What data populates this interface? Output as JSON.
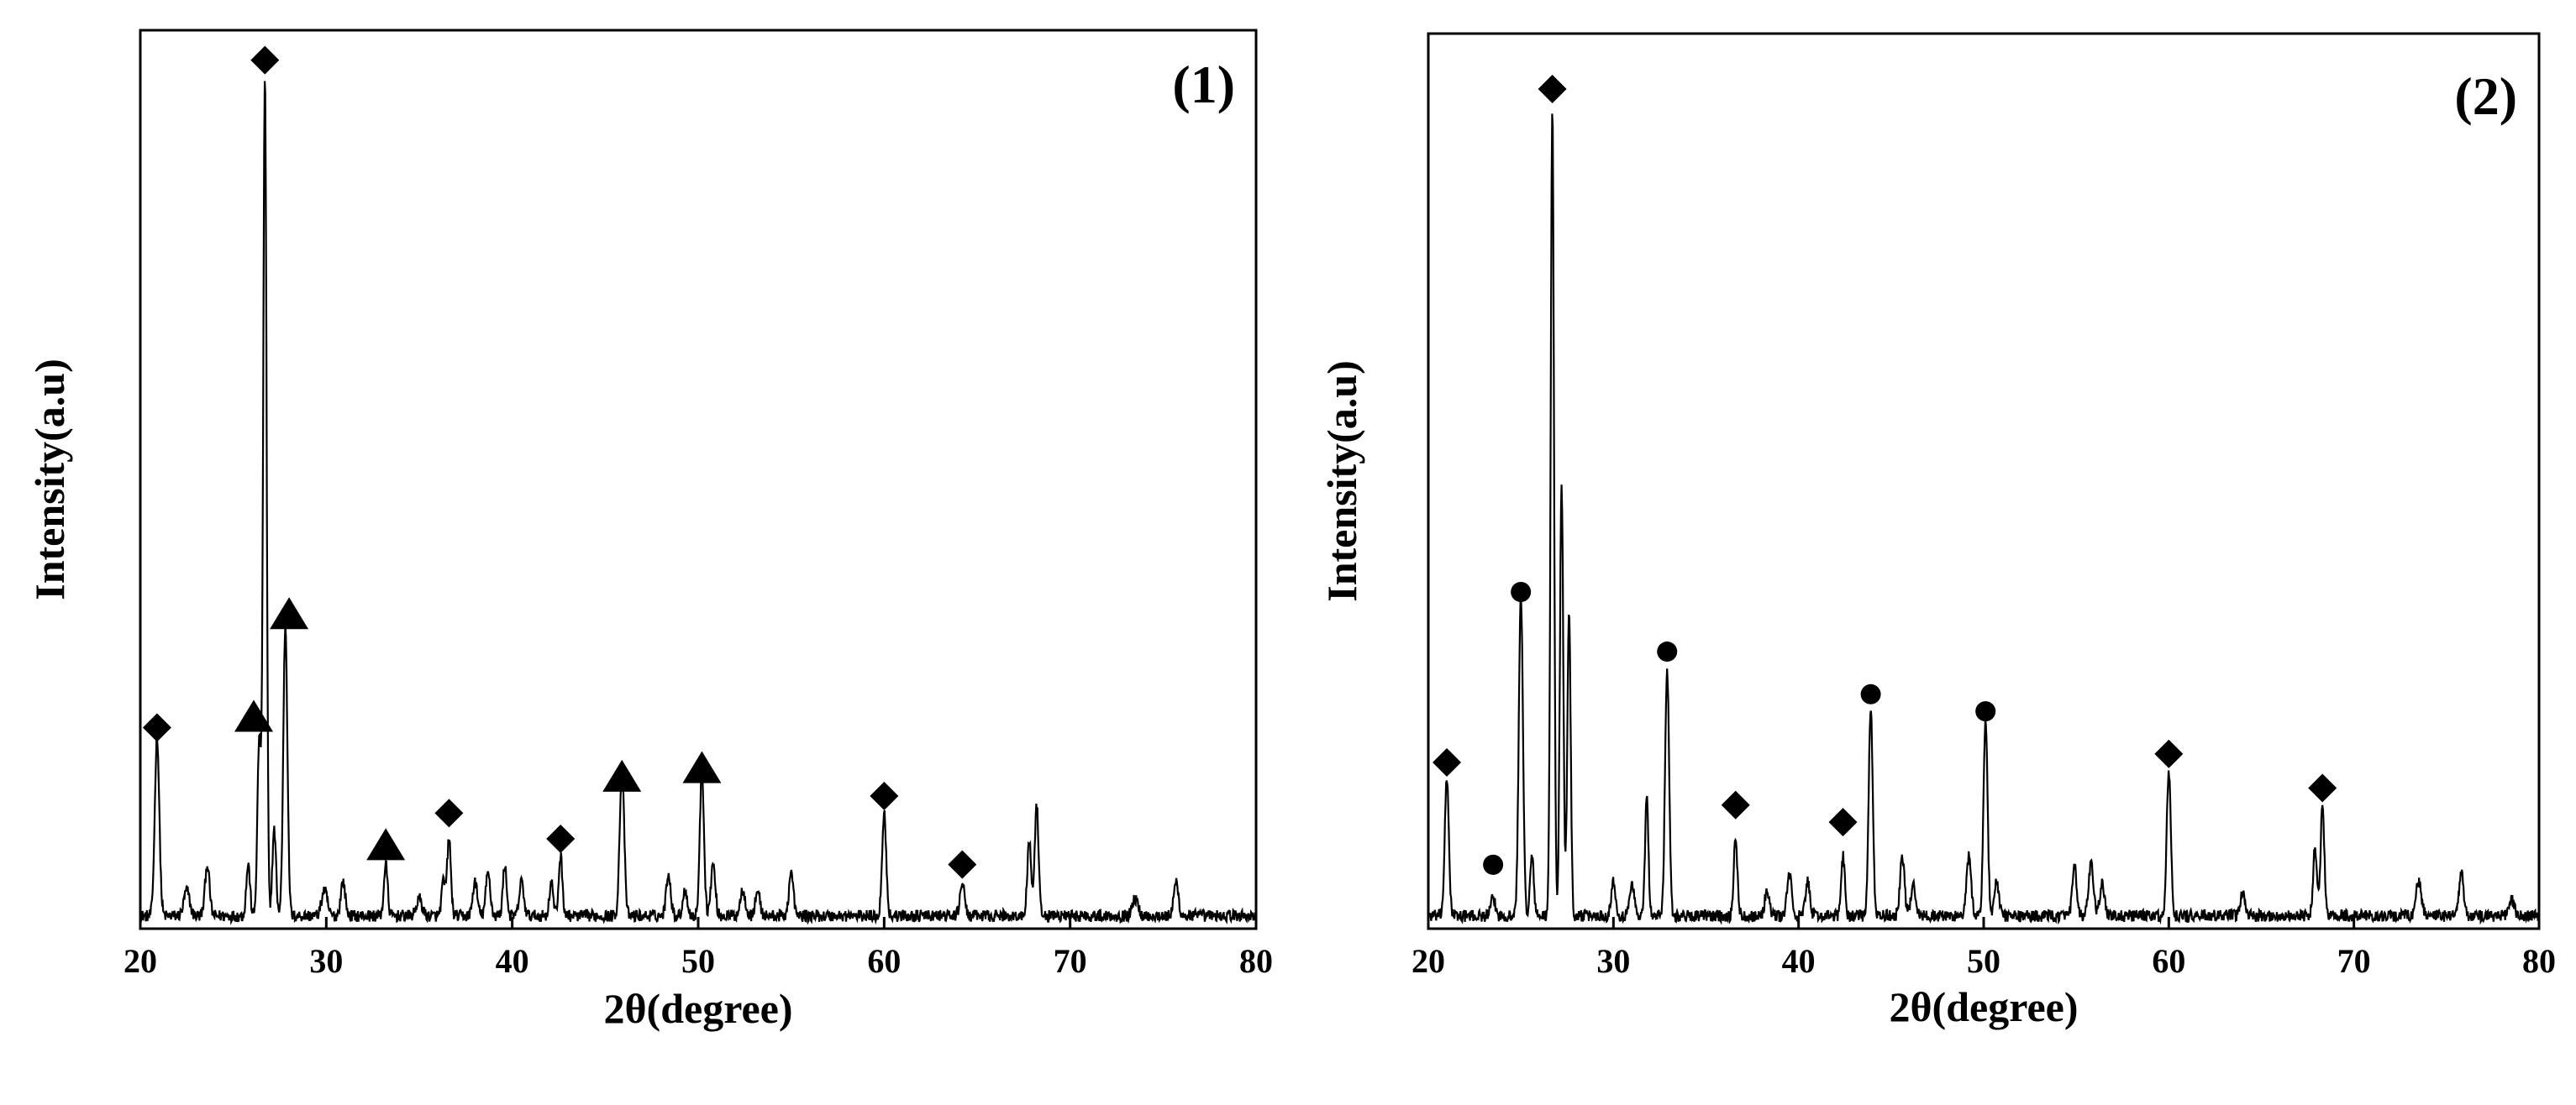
{
  "chart_data": [
    {
      "type": "line",
      "panel_label": "(1)",
      "xlabel": "2θ(degree)",
      "ylabel": "Intensity(a.u)",
      "xlim": [
        20,
        80
      ],
      "ylim": [
        0,
        1.05
      ],
      "xticks": [
        "20",
        "30",
        "40",
        "50",
        "60",
        "70",
        "80"
      ],
      "yticks_visible": false,
      "baseline": 0.015,
      "peaks": [
        {
          "x": 20.9,
          "h": 0.21,
          "w": 0.12
        },
        {
          "x": 22.5,
          "h": 0.03,
          "w": 0.15
        },
        {
          "x": 23.6,
          "h": 0.06,
          "w": 0.12
        },
        {
          "x": 25.8,
          "h": 0.06,
          "w": 0.1
        },
        {
          "x": 26.4,
          "h": 0.21,
          "w": 0.1
        },
        {
          "x": 26.7,
          "h": 0.98,
          "w": 0.09
        },
        {
          "x": 27.2,
          "h": 0.1,
          "w": 0.1
        },
        {
          "x": 27.8,
          "h": 0.34,
          "w": 0.11
        },
        {
          "x": 29.9,
          "h": 0.03,
          "w": 0.15
        },
        {
          "x": 30.9,
          "h": 0.04,
          "w": 0.12
        },
        {
          "x": 33.2,
          "h": 0.06,
          "w": 0.1
        },
        {
          "x": 35.0,
          "h": 0.02,
          "w": 0.15
        },
        {
          "x": 36.3,
          "h": 0.04,
          "w": 0.1
        },
        {
          "x": 36.6,
          "h": 0.09,
          "w": 0.1
        },
        {
          "x": 38.0,
          "h": 0.04,
          "w": 0.12
        },
        {
          "x": 38.7,
          "h": 0.05,
          "w": 0.12
        },
        {
          "x": 39.6,
          "h": 0.06,
          "w": 0.1
        },
        {
          "x": 40.5,
          "h": 0.04,
          "w": 0.12
        },
        {
          "x": 42.1,
          "h": 0.04,
          "w": 0.1
        },
        {
          "x": 42.6,
          "h": 0.07,
          "w": 0.1
        },
        {
          "x": 45.9,
          "h": 0.17,
          "w": 0.12
        },
        {
          "x": 48.4,
          "h": 0.05,
          "w": 0.12
        },
        {
          "x": 49.3,
          "h": 0.03,
          "w": 0.12
        },
        {
          "x": 50.2,
          "h": 0.17,
          "w": 0.11
        },
        {
          "x": 50.8,
          "h": 0.06,
          "w": 0.12
        },
        {
          "x": 52.4,
          "h": 0.03,
          "w": 0.14
        },
        {
          "x": 53.2,
          "h": 0.03,
          "w": 0.12
        },
        {
          "x": 55.0,
          "h": 0.05,
          "w": 0.12
        },
        {
          "x": 60.0,
          "h": 0.12,
          "w": 0.11
        },
        {
          "x": 64.2,
          "h": 0.04,
          "w": 0.12
        },
        {
          "x": 67.8,
          "h": 0.09,
          "w": 0.1
        },
        {
          "x": 68.2,
          "h": 0.13,
          "w": 0.1
        },
        {
          "x": 73.5,
          "h": 0.02,
          "w": 0.15
        },
        {
          "x": 75.7,
          "h": 0.04,
          "w": 0.12
        }
      ],
      "markers": [
        {
          "shape": "diamond",
          "x": 20.9,
          "y": 0.235
        },
        {
          "shape": "diamond",
          "x": 26.7,
          "y": 1.015
        },
        {
          "shape": "triangle",
          "x": 26.1,
          "y": 0.245
        },
        {
          "shape": "triangle",
          "x": 28.0,
          "y": 0.365
        },
        {
          "shape": "triangle",
          "x": 33.2,
          "y": 0.095
        },
        {
          "shape": "diamond",
          "x": 36.6,
          "y": 0.135
        },
        {
          "shape": "diamond",
          "x": 42.6,
          "y": 0.105
        },
        {
          "shape": "triangle",
          "x": 45.9,
          "y": 0.175
        },
        {
          "shape": "triangle",
          "x": 50.2,
          "y": 0.185
        },
        {
          "shape": "diamond",
          "x": 60.0,
          "y": 0.155
        },
        {
          "shape": "diamond",
          "x": 64.2,
          "y": 0.075
        }
      ]
    },
    {
      "type": "line",
      "panel_label": "(2)",
      "xlabel": "2θ(degree)",
      "ylabel": "Intensity(a.u)",
      "xlim": [
        20,
        80
      ],
      "ylim": [
        0,
        1.05
      ],
      "xticks": [
        "20",
        "30",
        "40",
        "50",
        "60",
        "70",
        "80"
      ],
      "yticks_visible": false,
      "baseline": 0.015,
      "peaks": [
        {
          "x": 21.0,
          "h": 0.16,
          "w": 0.11
        },
        {
          "x": 23.5,
          "h": 0.02,
          "w": 0.12
        },
        {
          "x": 25.0,
          "h": 0.38,
          "w": 0.11
        },
        {
          "x": 25.6,
          "h": 0.07,
          "w": 0.1
        },
        {
          "x": 26.7,
          "h": 0.95,
          "w": 0.09
        },
        {
          "x": 27.2,
          "h": 0.51,
          "w": 0.09
        },
        {
          "x": 27.6,
          "h": 0.36,
          "w": 0.09
        },
        {
          "x": 30.0,
          "h": 0.04,
          "w": 0.12
        },
        {
          "x": 31.0,
          "h": 0.04,
          "w": 0.12
        },
        {
          "x": 31.8,
          "h": 0.14,
          "w": 0.09
        },
        {
          "x": 32.9,
          "h": 0.29,
          "w": 0.11
        },
        {
          "x": 36.6,
          "h": 0.09,
          "w": 0.1
        },
        {
          "x": 38.3,
          "h": 0.03,
          "w": 0.12
        },
        {
          "x": 39.5,
          "h": 0.05,
          "w": 0.12
        },
        {
          "x": 40.5,
          "h": 0.04,
          "w": 0.12
        },
        {
          "x": 42.4,
          "h": 0.07,
          "w": 0.1
        },
        {
          "x": 43.9,
          "h": 0.24,
          "w": 0.11
        },
        {
          "x": 45.6,
          "h": 0.07,
          "w": 0.12
        },
        {
          "x": 46.2,
          "h": 0.04,
          "w": 0.12
        },
        {
          "x": 49.2,
          "h": 0.07,
          "w": 0.12
        },
        {
          "x": 50.1,
          "h": 0.23,
          "w": 0.11
        },
        {
          "x": 50.7,
          "h": 0.04,
          "w": 0.12
        },
        {
          "x": 54.9,
          "h": 0.06,
          "w": 0.11
        },
        {
          "x": 55.8,
          "h": 0.06,
          "w": 0.13
        },
        {
          "x": 56.4,
          "h": 0.04,
          "w": 0.12
        },
        {
          "x": 60.0,
          "h": 0.17,
          "w": 0.11
        },
        {
          "x": 64.0,
          "h": 0.03,
          "w": 0.12
        },
        {
          "x": 67.9,
          "h": 0.08,
          "w": 0.1
        },
        {
          "x": 68.3,
          "h": 0.13,
          "w": 0.1
        },
        {
          "x": 73.5,
          "h": 0.04,
          "w": 0.15
        },
        {
          "x": 75.8,
          "h": 0.05,
          "w": 0.12
        },
        {
          "x": 78.5,
          "h": 0.02,
          "w": 0.15
        }
      ],
      "markers": [
        {
          "shape": "diamond",
          "x": 21.0,
          "y": 0.195
        },
        {
          "shape": "circle",
          "x": 23.5,
          "y": 0.075
        },
        {
          "shape": "circle",
          "x": 25.0,
          "y": 0.395
        },
        {
          "shape": "diamond",
          "x": 26.7,
          "y": 0.985
        },
        {
          "shape": "circle",
          "x": 32.9,
          "y": 0.325
        },
        {
          "shape": "diamond",
          "x": 36.6,
          "y": 0.145
        },
        {
          "shape": "diamond",
          "x": 42.4,
          "y": 0.125
        },
        {
          "shape": "circle",
          "x": 43.9,
          "y": 0.275
        },
        {
          "shape": "circle",
          "x": 50.1,
          "y": 0.255
        },
        {
          "shape": "diamond",
          "x": 60.0,
          "y": 0.205
        },
        {
          "shape": "diamond",
          "x": 68.3,
          "y": 0.165
        }
      ]
    }
  ]
}
